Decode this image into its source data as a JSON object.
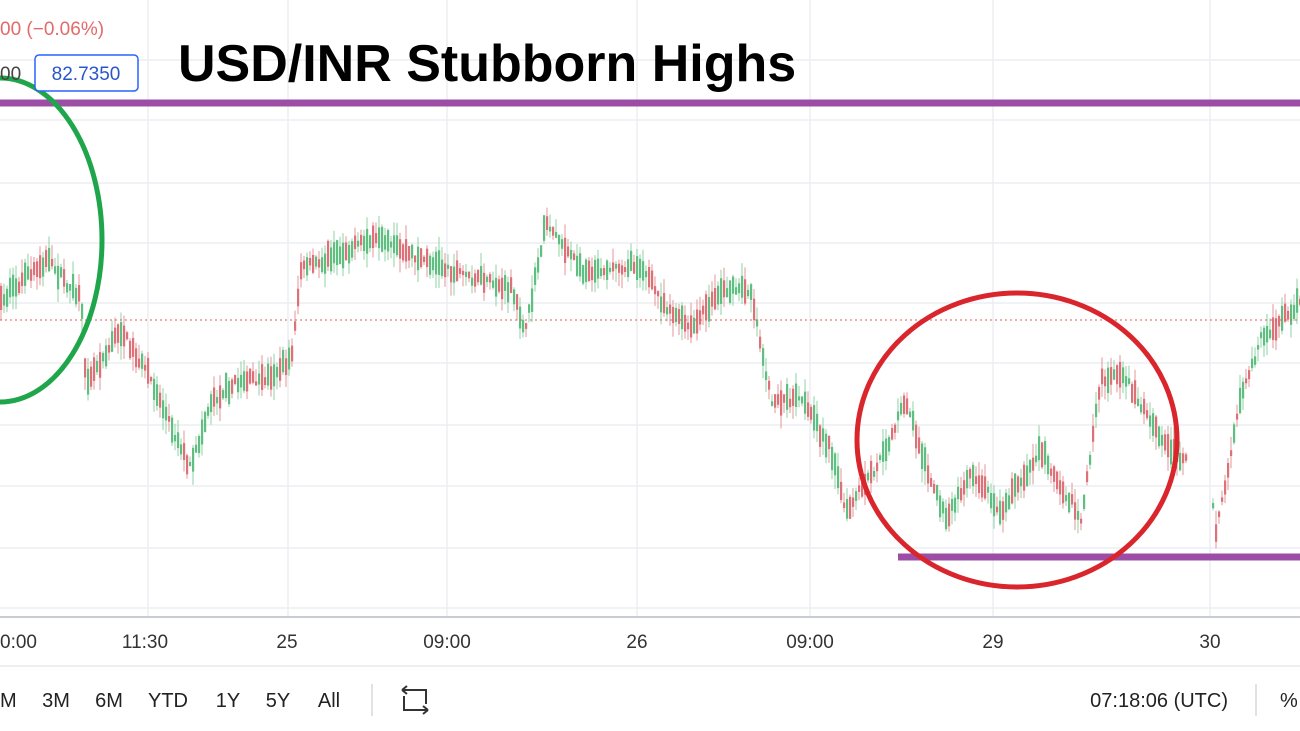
{
  "header": {
    "change": "00 (−0.06%)",
    "price_prefix": "00",
    "price": "82.7350"
  },
  "title": "USD/INR Stubborn Highs",
  "x_axis": {
    "labels": [
      "0:00",
      "11:30",
      "25",
      "09:00",
      "26",
      "09:00",
      "29",
      "30"
    ]
  },
  "toolbar": {
    "ranges": [
      "M",
      "3M",
      "6M",
      "YTD",
      "1Y",
      "5Y",
      "All"
    ],
    "clock": "07:18:06 (UTC)",
    "percent": "%"
  }
}
